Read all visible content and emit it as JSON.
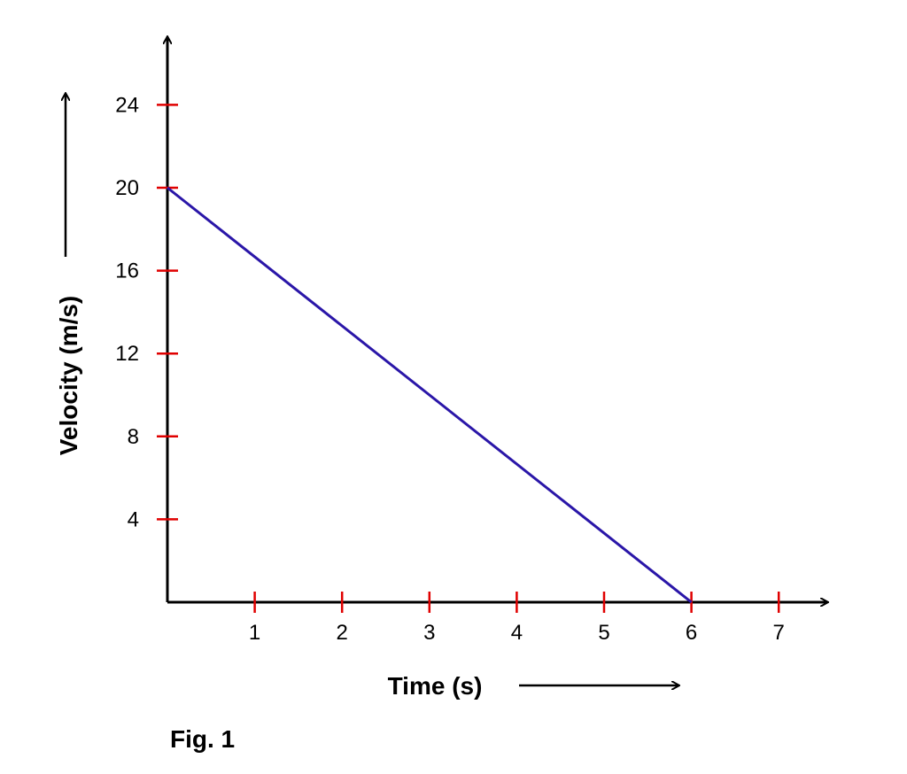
{
  "chart_data": {
    "type": "line",
    "title": "",
    "xlabel": "Time (s)",
    "ylabel": "Velocity (m/s)",
    "xlim": [
      0,
      7.5
    ],
    "ylim": [
      0,
      28
    ],
    "x_ticks": [
      1,
      2,
      3,
      4,
      5,
      6,
      7
    ],
    "y_ticks": [
      4,
      8,
      12,
      16,
      20,
      24
    ],
    "series": [
      {
        "x": [
          0,
          6
        ],
        "y": [
          20,
          0
        ],
        "color": "#2a16a8"
      }
    ],
    "grid": false,
    "legend": "none"
  },
  "figure_label": "Fig. 1",
  "colors": {
    "axis": "#000000",
    "tick_mark": "#e00000",
    "line": "#2a16a8"
  }
}
